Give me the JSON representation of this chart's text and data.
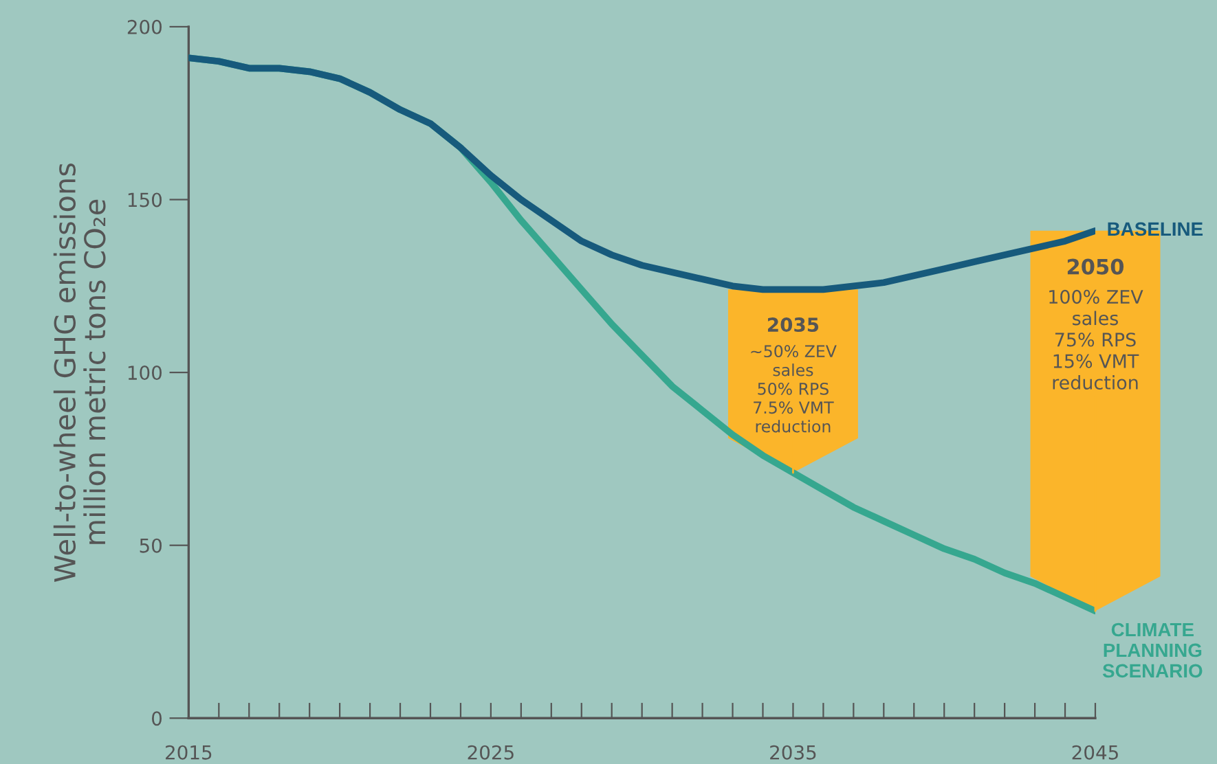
{
  "chart_data": {
    "type": "line",
    "ylabel": "Well-to-wheel GHG emissions\nmillion metric tons CO₂e",
    "x": [
      2015,
      2016,
      2017,
      2018,
      2019,
      2020,
      2021,
      2022,
      2023,
      2024,
      2025,
      2026,
      2027,
      2028,
      2029,
      2030,
      2031,
      2032,
      2033,
      2034,
      2035,
      2036,
      2037,
      2038,
      2039,
      2040,
      2041,
      2042,
      2043,
      2044,
      2045
    ],
    "series": [
      {
        "name": "BASELINE",
        "color": "#175a7c",
        "values": [
          191,
          190,
          188,
          188,
          187,
          185,
          181,
          176,
          172,
          165,
          157,
          150,
          144,
          138,
          134,
          131,
          129,
          127,
          125,
          124,
          124,
          124,
          125,
          126,
          128,
          130,
          132,
          134,
          136,
          138,
          141
        ]
      },
      {
        "name": "CLIMATE PLANNING SCENARIO",
        "color": "#36a78f",
        "values": [
          191,
          190,
          188,
          188,
          187,
          185,
          181,
          176,
          172,
          165,
          155,
          144,
          134,
          124,
          114,
          105,
          96,
          89,
          82,
          76,
          71,
          66,
          61,
          57,
          53,
          49,
          46,
          42,
          39,
          35,
          31
        ]
      }
    ],
    "xlim": [
      2015,
      2045
    ],
    "ylim": [
      0,
      200
    ],
    "xticks": [
      2015,
      {
        "value": 2016,
        "label": null
      },
      {
        "value": 2017,
        "label": null
      },
      {
        "value": 2018,
        "label": null
      },
      {
        "value": 2019,
        "label": null
      },
      {
        "value": 2020,
        "label": null
      },
      {
        "value": 2021,
        "label": null
      },
      {
        "value": 2022,
        "label": null
      },
      {
        "value": 2023,
        "label": null
      },
      {
        "value": 2024,
        "label": null
      },
      2025,
      {
        "value": 2026,
        "label": null
      },
      {
        "value": 2027,
        "label": null
      },
      {
        "value": 2028,
        "label": null
      },
      {
        "value": 2029,
        "label": null
      },
      {
        "value": 2030,
        "label": null
      },
      {
        "value": 2031,
        "label": null
      },
      {
        "value": 2032,
        "label": null
      },
      {
        "value": 2033,
        "label": null
      },
      {
        "value": 2034,
        "label": null
      },
      2035,
      {
        "value": 2036,
        "label": null
      },
      {
        "value": 2037,
        "label": null
      },
      {
        "value": 2038,
        "label": null
      },
      {
        "value": 2039,
        "label": null
      },
      {
        "value": 2040,
        "label": null
      },
      {
        "value": 2041,
        "label": null
      },
      {
        "value": 2042,
        "label": null
      },
      {
        "value": 2043,
        "label": null
      },
      {
        "value": 2044,
        "label": null
      },
      2045
    ],
    "yticks": [
      0,
      50,
      100,
      150,
      200
    ],
    "grid": false,
    "legend": false,
    "annotations": [
      {
        "text": "2035\n~50% ZEV\nsales\n50% RPS\n7.5% VMT\nreduction",
        "x": 2035,
        "y": 71
      },
      {
        "text": "2050\n100% ZEV\nsales\n75% RPS\n15% VMT\nreduction",
        "x": 2045,
        "y": 31
      }
    ]
  }
}
